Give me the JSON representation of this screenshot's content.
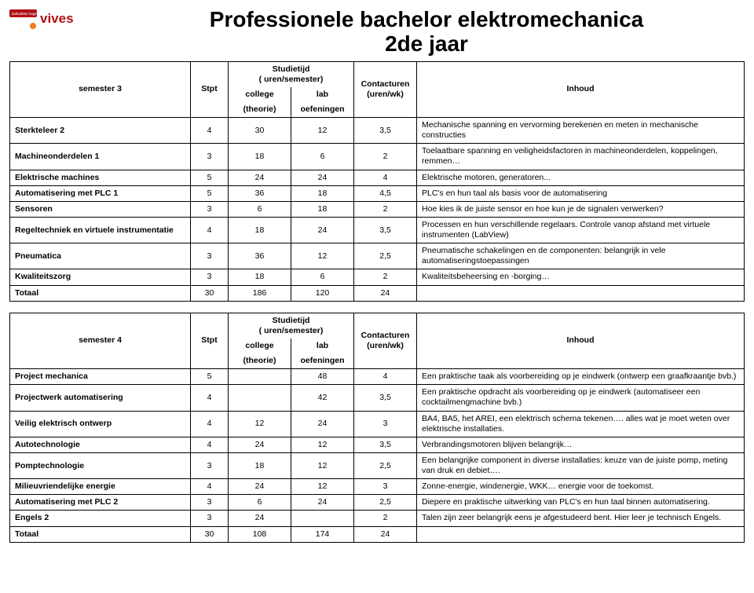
{
  "title_line1": "Professionele bachelor elektromechanica",
  "title_line2": "2de jaar",
  "logo": {
    "brand": "vives",
    "tag": "katholieke hogeschool"
  },
  "headers": {
    "stpt": "Stpt",
    "studietijd": "Studietijd",
    "studietijd_sub": "( uren/semester)",
    "college": "college",
    "theorie": "(theorie)",
    "lab": "lab",
    "oef": "oefeningen",
    "contact": "Contacturen",
    "contact_sub": "(uren/wk)",
    "inhoud": "Inhoud"
  },
  "sem3": {
    "label": "semester 3",
    "rows": [
      {
        "name": "Sterkteleer 2",
        "stpt": "4",
        "col": "30",
        "lab": "12",
        "cont": "3,5",
        "desc": "Mechanische spanning en vervorming berekenen en meten in mechanische constructies"
      },
      {
        "name": "Machineonderdelen 1",
        "stpt": "3",
        "col": "18",
        "lab": "6",
        "cont": "2",
        "desc": "Toelaatbare spanning en veiligheidsfactoren in machineonderdelen, koppelingen, remmen…"
      },
      {
        "name": "Elektrische machines",
        "stpt": "5",
        "col": "24",
        "lab": "24",
        "cont": "4",
        "desc": "Elektrische motoren, generatoren..."
      },
      {
        "name": "Automatisering met PLC 1",
        "stpt": "5",
        "col": "36",
        "lab": "18",
        "cont": "4,5",
        "desc": "PLC's en hun taal als basis voor de automatisering"
      },
      {
        "name": "Sensoren",
        "stpt": "3",
        "col": "6",
        "lab": "18",
        "cont": "2",
        "desc": "Hoe kies ik de juiste sensor en hoe kun je de signalen verwerken?"
      },
      {
        "name": "Regeltechniek en virtuele instrumentatie",
        "stpt": "4",
        "col": "18",
        "lab": "24",
        "cont": "3,5",
        "desc": "Processen en hun verschillende regelaars. Controle vanop afstand met virtuele instrumenten (LabView)"
      },
      {
        "name": "Pneumatica",
        "stpt": "3",
        "col": "36",
        "lab": "12",
        "cont": "2,5",
        "desc": "Pneumatische schakelingen en de componenten: belangrijk in vele automatiseringstoepassingen"
      },
      {
        "name": "Kwaliteitszorg",
        "stpt": "3",
        "col": "18",
        "lab": "6",
        "cont": "2",
        "desc": "Kwaliteitsbeheersing en -borging…"
      }
    ],
    "total": {
      "name": "Totaal",
      "stpt": "30",
      "col": "186",
      "lab": "120",
      "cont": "24",
      "desc": ""
    }
  },
  "sem4": {
    "label": "semester 4",
    "rows": [
      {
        "name": "Project mechanica",
        "stpt": "5",
        "col": "",
        "lab": "48",
        "cont": "4",
        "desc": "Een praktische taak als voorbereiding op je eindwerk (ontwerp een graafkraantje bvb.)"
      },
      {
        "name": "Projectwerk automatisering",
        "stpt": "4",
        "col": "",
        "lab": "42",
        "cont": "3,5",
        "desc": "Een praktische opdracht als voorbereiding op je eindwerk (automatiseer een cocktailmengmachine bvb.)"
      },
      {
        "name": "Veilig elektrisch ontwerp",
        "stpt": "4",
        "col": "12",
        "lab": "24",
        "cont": "3",
        "desc": "BA4, BA5, het AREI, een elektrisch schema tekenen…. alles wat je moet weten over elektrische installaties."
      },
      {
        "name": "Autotechnologie",
        "stpt": "4",
        "col": "24",
        "lab": "12",
        "cont": "3,5",
        "desc": "Verbrandingsmotoren blijven belangrijk…"
      },
      {
        "name": "Pomptechnologie",
        "stpt": "3",
        "col": "18",
        "lab": "12",
        "cont": "2,5",
        "desc": "Een belangrijke component in diverse installaties: keuze van de juiste pomp, meting van druk en debiet…."
      },
      {
        "name": "Milieuvriendelijke energie",
        "stpt": "4",
        "col": "24",
        "lab": "12",
        "cont": "3",
        "desc": "Zonne-energie, windenergie, WKK… energie voor de toekomst."
      },
      {
        "name": "Automatisering met PLC 2",
        "stpt": "3",
        "col": "6",
        "lab": "24",
        "cont": "2,5",
        "desc": "Diepere en praktische uitwerking van PLC's en hun taal binnen automatisering."
      },
      {
        "name": "Engels 2",
        "stpt": "3",
        "col": "24",
        "lab": "",
        "cont": "2",
        "desc": "Talen zijn zeer belangrijk eens je afgestudeerd bent. Hier leer je technisch Engels."
      }
    ],
    "total": {
      "name": "Totaal",
      "stpt": "30",
      "col": "108",
      "lab": "174",
      "cont": "24",
      "desc": ""
    }
  }
}
